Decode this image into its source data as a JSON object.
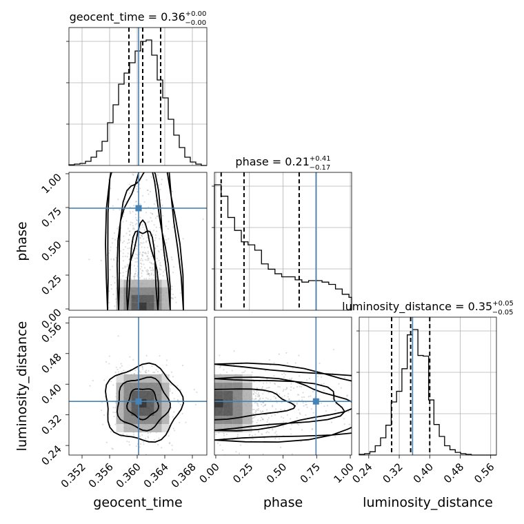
{
  "chart_data": {
    "type": "corner",
    "parameters": [
      "geocent_time",
      "phase",
      "luminosity_distance"
    ],
    "truths": {
      "geocent_time": 0.3602,
      "phase": 0.745,
      "luminosity_distance": 0.355
    },
    "ranges": {
      "geocent_time": [
        0.3501,
        0.3701
      ],
      "phase": [
        -0.01,
        1.01
      ],
      "luminosity_distance": [
        0.215,
        0.575
      ]
    },
    "ticks": {
      "geocent_time": [
        0.352,
        0.356,
        0.36,
        0.364,
        0.368
      ],
      "phase": [
        0.0,
        0.25,
        0.5,
        0.75,
        1.0
      ],
      "luminosity_distance": [
        0.24,
        0.32,
        0.4,
        0.48,
        0.56
      ]
    },
    "tick_labels": {
      "geocent_time": [
        "0.352",
        "0.356",
        "0.360",
        "0.364",
        "0.368"
      ],
      "phase": [
        "0.00",
        "0.25",
        "0.50",
        "0.75",
        "1.00"
      ],
      "luminosity_distance": [
        "0.24",
        "0.32",
        "0.40",
        "0.48",
        "0.56"
      ]
    },
    "titles": {
      "geocent_time": {
        "name": "geocent_time",
        "median": "0.36",
        "plus": "+0.00",
        "minus": "−0.00"
      },
      "phase": {
        "name": "phase",
        "median": "0.21",
        "plus": "+0.41",
        "minus": "−0.17"
      },
      "luminosity_distance": {
        "name": "luminosity_distance",
        "median": "0.35",
        "plus": "+0.05",
        "minus": "−0.05"
      }
    },
    "quantiles": {
      "geocent_time": [
        0.3588,
        0.3608,
        0.3634
      ],
      "phase": [
        0.04,
        0.21,
        0.62
      ],
      "luminosity_distance": [
        0.3,
        0.35,
        0.4
      ]
    },
    "histograms": {
      "geocent_time": {
        "edges": [
          0.3501,
          0.3509,
          0.3517,
          0.3525,
          0.3533,
          0.3541,
          0.3549,
          0.3557,
          0.3565,
          0.3573,
          0.3581,
          0.3589,
          0.3597,
          0.3605,
          0.3613,
          0.3621,
          0.3629,
          0.3637,
          0.3645,
          0.3653,
          0.3661,
          0.3669,
          0.3677,
          0.3685,
          0.3693,
          0.3701
        ],
        "counts": [
          1,
          2,
          3,
          6,
          12,
          21,
          35,
          62,
          88,
          118,
          134,
          149,
          166,
          180,
          182,
          160,
          124,
          98,
          67,
          44,
          26,
          12,
          5,
          2,
          0
        ]
      },
      "phase": {
        "edges": [
          -0.01,
          0.04,
          0.09,
          0.14,
          0.19,
          0.24,
          0.29,
          0.34,
          0.39,
          0.44,
          0.49,
          0.54,
          0.59,
          0.64,
          0.69,
          0.74,
          0.79,
          0.84,
          0.89,
          0.94,
          0.99,
          1.01
        ],
        "counts": [
          165,
          150,
          122,
          105,
          90,
          86,
          79,
          61,
          54,
          48,
          44,
          44,
          40,
          37,
          39,
          39,
          37,
          34,
          28,
          21,
          17
        ]
      },
      "luminosity_distance": {
        "edges": [
          0.215,
          0.229,
          0.243,
          0.257,
          0.271,
          0.285,
          0.299,
          0.313,
          0.327,
          0.341,
          0.355,
          0.369,
          0.383,
          0.397,
          0.411,
          0.425,
          0.439,
          0.453,
          0.467,
          0.481,
          0.495,
          0.509,
          0.523,
          0.537,
          0.551,
          0.565,
          0.575
        ],
        "counts": [
          1,
          2,
          5,
          14,
          26,
          45,
          80,
          96,
          130,
          181,
          189,
          150,
          149,
          83,
          46,
          28,
          14,
          8,
          4,
          2,
          1,
          0,
          0,
          0,
          0,
          0
        ]
      }
    },
    "grid": true,
    "axis_labels": {
      "x": [
        "geocent_time",
        "phase",
        "luminosity_distance"
      ],
      "y": [
        "phase",
        "luminosity_distance"
      ]
    }
  }
}
